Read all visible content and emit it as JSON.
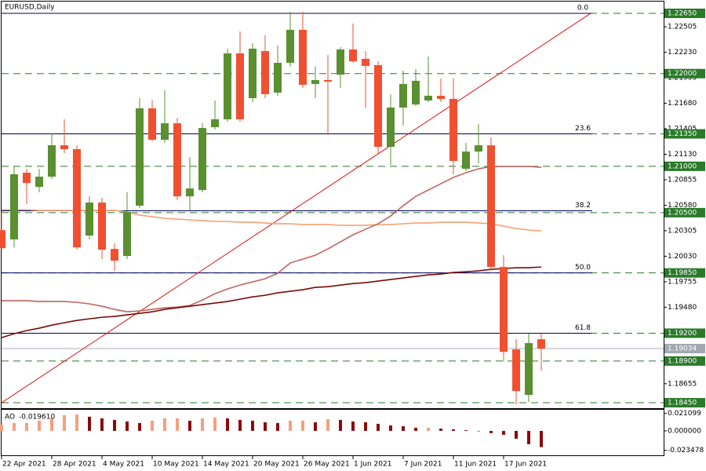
{
  "chart_data": {
    "type": "candlestick",
    "title": "EURUSD,Daily",
    "categories": [
      "22 Apr 2021",
      null,
      null,
      null,
      "28 Apr 2021",
      null,
      null,
      null,
      "4 May 2021",
      null,
      null,
      null,
      "10 May 2021",
      null,
      null,
      null,
      "14 May 2021",
      null,
      null,
      null,
      "20 May 2021",
      null,
      null,
      null,
      "26 May 2021",
      null,
      null,
      null,
      "1 Jun 2021",
      null,
      null,
      null,
      "7 Jun 2021",
      null,
      null,
      null,
      "11 Jun 2021",
      null,
      null,
      null,
      "17 Jun 2021",
      null,
      null,
      null
    ],
    "open": [
      1.20312,
      1.20211,
      1.20931,
      1.20778,
      1.20888,
      1.21227,
      1.21185,
      1.20253,
      1.20609,
      1.20109,
      1.20033,
      1.20575,
      1.21625,
      1.21286,
      1.21464,
      1.20676,
      1.20744,
      1.21422,
      1.21507,
      1.22218,
      1.21735,
      1.22243,
      1.21795,
      1.22116,
      1.22472,
      1.21888,
      1.2193,
      1.21989,
      1.2226,
      1.22159,
      1.22091,
      1.2121,
      1.21634,
      1.21667,
      1.2171,
      1.21761,
      1.21727,
      1.20973,
      1.21159,
      1.21227,
      1.19914,
      1.19025,
      1.18534,
      1.19135
    ],
    "high": [
      1.20507,
      1.20998,
      1.20973,
      1.20973,
      1.21354,
      1.21507,
      1.21227,
      1.20676,
      1.2066,
      1.20168,
      1.20719,
      1.21735,
      1.2171,
      1.2182,
      1.21523,
      1.211,
      1.21464,
      1.2171,
      1.22269,
      1.22455,
      1.22328,
      1.22413,
      1.22303,
      1.22667,
      1.22667,
      1.22074,
      1.22201,
      1.22286,
      1.2254,
      1.22243,
      1.22133,
      1.21778,
      1.22032,
      1.22049,
      1.22184,
      1.21947,
      1.21947,
      1.21252,
      1.21456,
      1.21312,
      1.20041,
      1.19135,
      1.19194,
      1.19194
    ],
    "low": [
      1.20101,
      1.20126,
      1.20592,
      1.20719,
      1.20863,
      1.21142,
      1.20101,
      1.20211,
      1.19999,
      1.19872,
      1.19999,
      1.20549,
      1.21269,
      1.21252,
      1.20634,
      1.20524,
      1.20719,
      1.21396,
      1.21481,
      1.21481,
      1.21693,
      1.21735,
      1.21761,
      1.22074,
      1.21845,
      1.21735,
      1.21337,
      1.21845,
      1.22116,
      1.21625,
      1.21142,
      1.21015,
      1.21439,
      1.21651,
      1.21693,
      1.21693,
      1.20914,
      1.20948,
      1.21032,
      1.19872,
      1.18898,
      1.18432,
      1.18457,
      1.18796
    ],
    "close": [
      1.20117,
      1.20914,
      1.2082,
      1.20888,
      1.21227,
      1.21185,
      1.20126,
      1.20609,
      1.20101,
      1.19982,
      1.20507,
      1.21625,
      1.21286,
      1.21464,
      1.20676,
      1.20761,
      1.21413,
      1.21507,
      1.22218,
      1.21507,
      1.22269,
      1.21778,
      1.22116,
      1.22472,
      1.21879,
      1.2193,
      1.21913,
      1.2226,
      1.22133,
      1.22083,
      1.2121,
      1.21634,
      1.21888,
      1.21922,
      1.21761,
      1.21727,
      1.21058,
      1.21159,
      1.21227,
      1.19914,
      1.18999,
      1.18576,
      1.19093,
      1.19034
    ],
    "up_color": "#5a9030",
    "down_color": "#f05030",
    "ylim": [
      1.18391,
      1.22726
    ],
    "yticks": [
      1.22505,
      {
        "value": 1.2223,
        "label": "1.22230"
      },
      1.21955,
      {
        "value": 1.2168,
        "label": "1.21680"
      },
      1.21405,
      {
        "value": 1.2113,
        "label": "1.21130"
      },
      1.20855,
      {
        "value": 1.2058,
        "label": "1.20580"
      },
      1.20305,
      {
        "value": 1.2003,
        "label": "1.20030"
      },
      1.19755,
      {
        "value": 1.1948,
        "label": "1.19480"
      },
      1.18655
    ],
    "moving_averages": [
      {
        "color": "#f4a272",
        "values": [
          1.20532,
          1.20532,
          1.20532,
          1.20524,
          1.20524,
          1.20524,
          1.20524,
          1.20524,
          1.20524,
          1.20524,
          1.20507,
          1.20473,
          1.20456,
          1.20439,
          1.20431,
          1.20422,
          1.20414,
          1.20405,
          1.20405,
          1.20397,
          1.20397,
          1.20389,
          1.2038,
          1.2038,
          1.20372,
          1.20372,
          1.20372,
          1.20363,
          1.20363,
          1.20363,
          1.20372,
          1.20372,
          1.2038,
          1.20389,
          1.20389,
          1.20397,
          1.20397,
          1.20397,
          1.20389,
          1.2038,
          1.20355,
          1.20329,
          1.20312,
          1.20304
        ]
      },
      {
        "color": "#c06462",
        "values": [
          1.1955,
          1.1955,
          1.1955,
          1.19542,
          1.19542,
          1.19542,
          1.19533,
          1.19516,
          1.19491,
          1.19457,
          1.19431,
          1.1944,
          1.19457,
          1.19474,
          1.19482,
          1.19499,
          1.19558,
          1.19626,
          1.19677,
          1.19719,
          1.19753,
          1.19787,
          1.19846,
          1.19957,
          1.19999,
          1.20041,
          1.20109,
          1.20185,
          1.20261,
          1.20321,
          1.2038,
          1.20465,
          1.20575,
          1.20676,
          1.20744,
          1.20812,
          1.2088,
          1.20931,
          1.20973,
          1.20998,
          1.20998,
          1.20998,
          1.20998,
          1.2099
        ]
      },
      {
        "color": "#7a0a0a",
        "values": [
          1.19152,
          1.19194,
          1.19228,
          1.19254,
          1.19287,
          1.19313,
          1.19338,
          1.19355,
          1.19372,
          1.19381,
          1.19398,
          1.19414,
          1.19431,
          1.19457,
          1.19474,
          1.19491,
          1.19508,
          1.19525,
          1.19542,
          1.19567,
          1.19592,
          1.19609,
          1.19635,
          1.19652,
          1.19669,
          1.19694,
          1.19702,
          1.19719,
          1.19736,
          1.19745,
          1.19762,
          1.19779,
          1.19796,
          1.19813,
          1.19829,
          1.19838,
          1.19855,
          1.19863,
          1.19872,
          1.19889,
          1.19897,
          1.19906,
          1.19906,
          1.19914
        ]
      }
    ],
    "trendline": {
      "color": "#e01010",
      "prices": [
        1.1845,
        1.2265
      ]
    },
    "fib_levels": [
      {
        "label": "0.0",
        "price": 1.2265
      },
      {
        "label": "23.6",
        "price": 1.2135
      },
      {
        "label": "38.2",
        "price": 1.2052
      },
      {
        "label": "50.0",
        "price": 1.1985
      },
      {
        "label": "61.8",
        "price": 1.192
      }
    ],
    "fib_color": "#000060",
    "levels": [
      {
        "value": 1.2265,
        "label": "1.22650"
      },
      {
        "value": 1.22,
        "label": "1.22000"
      },
      {
        "value": 1.2135,
        "label": "1.21350"
      },
      {
        "value": 1.21,
        "label": "1.21000"
      },
      {
        "value": 1.205,
        "label": "1.20500"
      },
      {
        "value": 1.1985,
        "label": "1.19850"
      },
      {
        "value": 1.192,
        "label": "1.19200"
      },
      {
        "value": 1.189,
        "label": "1.18900"
      },
      {
        "value": 1.1845,
        "label": "1.18450"
      }
    ],
    "level_color": "#2a7a2a",
    "current_price": {
      "value": 1.19034,
      "label": "1.19034"
    },
    "oscillator": {
      "name": "AO",
      "value_label": "-0.019610",
      "values": [
        0.0076,
        0.0095,
        0.0095,
        0.0123,
        0.0152,
        0.019,
        0.0199,
        0.0171,
        0.0152,
        0.0133,
        0.0114,
        0.0095,
        0.0123,
        0.0152,
        0.0152,
        0.0123,
        0.0152,
        0.0161,
        0.0152,
        0.0133,
        0.0123,
        0.0104,
        0.0095,
        0.0123,
        0.0123,
        0.0104,
        0.0142,
        0.0133,
        0.0114,
        0.0104,
        0.0085,
        0.0066,
        0.0057,
        0.0038,
        0.0038,
        0.0028,
        0.0019,
        0.0009,
        -0.0005,
        -0.0028,
        -0.0047,
        -0.0095,
        -0.0161,
        -0.01961
      ],
      "up_color": "#f4a080",
      "down_color": "#8b0a0a",
      "ylim": [
        -0.0295,
        0.0255
      ],
      "yticks": [
        0.021099,
        {
          "value": 0,
          "label": "0.000000"
        },
        -0.023478
      ]
    }
  }
}
